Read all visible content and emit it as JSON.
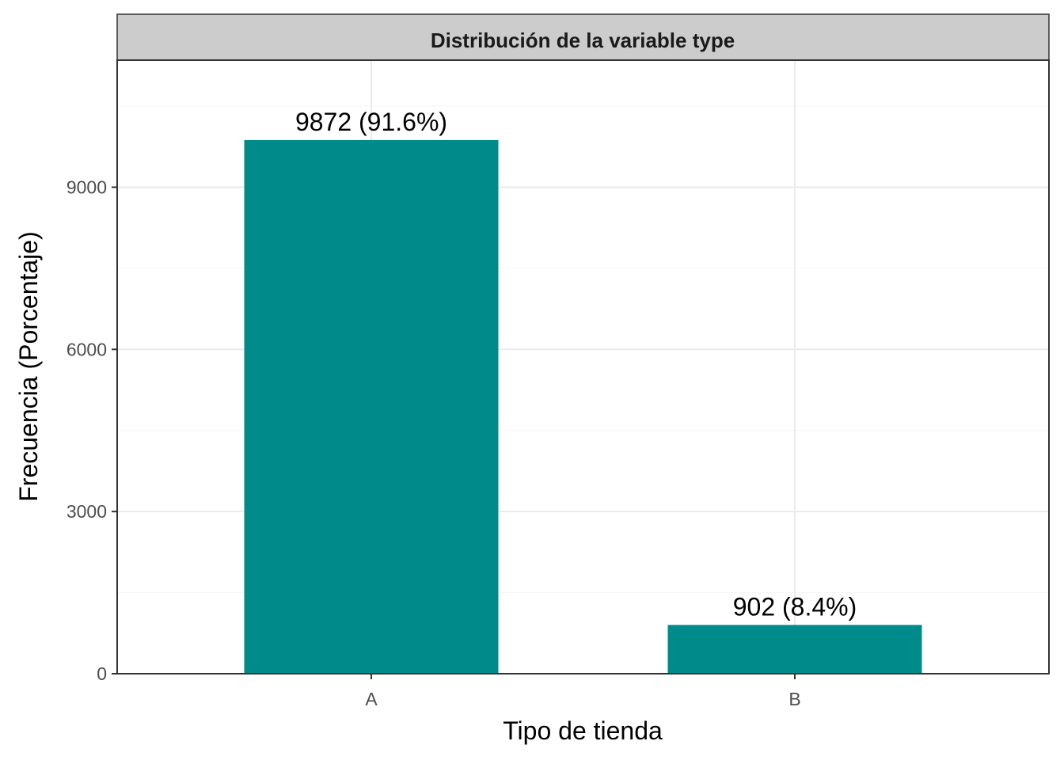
{
  "colors": {
    "bar": "#008B8B",
    "strip_background": "#CCCCCC",
    "panel_border": "#333333",
    "grid_major": "#EBEBEB",
    "grid_minor": "#F5F5F5"
  },
  "chart_data": {
    "type": "bar",
    "facet_title": "Distribución de la variable type",
    "xlabel": "Tipo de tienda",
    "ylabel": "Frecuencia (Porcentaje)",
    "categories": [
      "A",
      "B"
    ],
    "values": [
      9872,
      902
    ],
    "data_labels": [
      "9872 (91.6%)",
      "902 (8.4%)"
    ],
    "y_ticks": [
      0,
      3000,
      6000,
      9000
    ],
    "y_tick_labels": [
      "0",
      "3000",
      "6000",
      "9000"
    ],
    "ylim": [
      0,
      11350
    ],
    "grid": true,
    "legend": "none"
  }
}
